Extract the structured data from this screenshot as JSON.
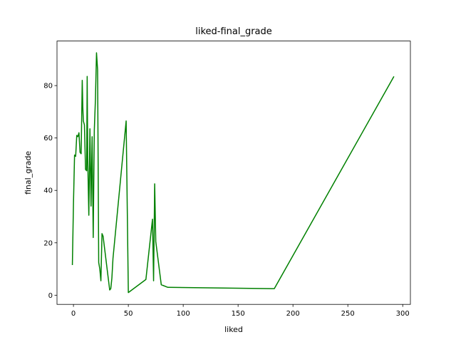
{
  "chart_data": {
    "type": "line",
    "title": "liked-final_grade",
    "xlabel": "liked",
    "ylabel": "final_grade",
    "xlim": [
      -15,
      307
    ],
    "ylim": [
      -3.5,
      97
    ],
    "xticks": [
      0,
      50,
      100,
      150,
      200,
      250,
      300
    ],
    "yticks": [
      0,
      20,
      40,
      60,
      80
    ],
    "grid": false,
    "legend": false,
    "colors": {
      "line": "#008000",
      "axes": "#000000",
      "background": "#ffffff"
    },
    "series": [
      {
        "x": [
          -1,
          0,
          1,
          2,
          3,
          4,
          5,
          6,
          7,
          7.5,
          8,
          8.5,
          9,
          10,
          11,
          12,
          12.5,
          13,
          14,
          15,
          16,
          17,
          18,
          19,
          20,
          21,
          22,
          23,
          24,
          25,
          26,
          27,
          33,
          34,
          35,
          36,
          48,
          50,
          66,
          72,
          73,
          74,
          75,
          80,
          86,
          183,
          292
        ],
        "y": [
          11.5,
          35,
          53.5,
          53,
          61,
          60.5,
          62,
          54.5,
          54,
          68,
          82,
          72,
          66.5,
          65,
          48,
          47.5,
          83.5,
          52,
          30.5,
          63.5,
          34,
          60.5,
          22,
          63,
          74.5,
          92.5,
          86,
          12.5,
          10,
          5.5,
          23.5,
          22.5,
          2,
          2.5,
          6.5,
          14,
          66.5,
          1,
          6,
          29,
          5.5,
          42.5,
          20.5,
          4,
          3,
          2.5,
          83.5
        ]
      }
    ]
  }
}
